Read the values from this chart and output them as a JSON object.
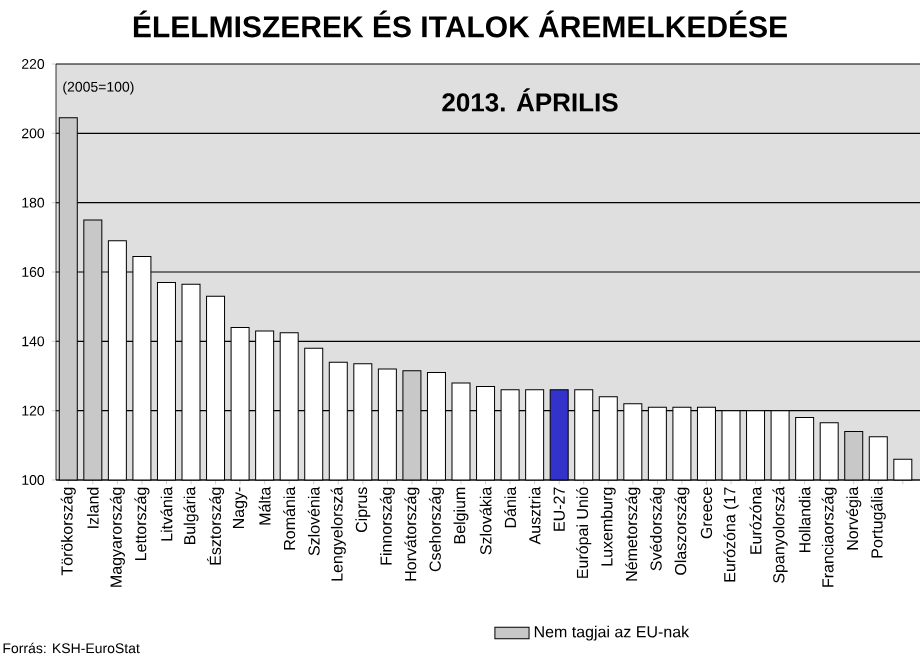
{
  "chart_data": {
    "type": "bar",
    "title": "ÉLELMISZEREK ÉS ITALOK ÁREMELKEDÉSE",
    "subtitle": "2013. ÁPRILIS",
    "categories": [
      "Törökország",
      "Izland",
      "Magyarország",
      "Lettország",
      "Litvánia",
      "Bulgária",
      "Észtország",
      "Nagy-",
      "Málta",
      "Románia",
      "Szlovénia",
      "Lengyelorszá",
      "Ciprus",
      "Finnország",
      "Horvátország",
      "Csehország",
      "Belgium",
      "Szlovákia",
      "Dánia",
      "Ausztria",
      "EU-27",
      "Európai Unió",
      "Luxemburg",
      "Németország",
      "Svédország",
      "Olaszország",
      "Greece",
      "Eurózóna (17",
      "Eurózóna",
      "Spanyolorszá",
      "Hollandia",
      "Franciaország",
      "Norvégia",
      "Portugália",
      null
    ],
    "series": [
      {
        "name": "Nem tagjai az EU-nak",
        "color": "#c8c8c8",
        "values": [
          204.5,
          175,
          null,
          null,
          null,
          null,
          null,
          null,
          null,
          null,
          null,
          null,
          null,
          null,
          131.5,
          null,
          null,
          null,
          null,
          null,
          null,
          null,
          null,
          null,
          null,
          null,
          null,
          null,
          null,
          null,
          null,
          null,
          114,
          null,
          null
        ]
      },
      {
        "color": "#ffffff",
        "values": [
          null,
          null,
          169,
          164.5,
          157,
          156.5,
          153,
          144,
          143,
          142.5,
          138,
          134,
          133.5,
          132,
          null,
          131,
          128,
          127,
          126,
          126,
          null,
          126,
          124,
          122,
          121,
          121,
          121,
          120,
          120,
          120,
          118,
          116.5,
          null,
          112.5,
          106
        ]
      },
      {
        "color": "#3333cc",
        "values": [
          null,
          null,
          null,
          null,
          null,
          null,
          null,
          null,
          null,
          null,
          null,
          null,
          null,
          null,
          null,
          null,
          null,
          null,
          null,
          null,
          126,
          null,
          null,
          null,
          null,
          null,
          null,
          null,
          null,
          null,
          null,
          null,
          null,
          null,
          null
        ]
      }
    ],
    "ylim": [
      100,
      220
    ],
    "yticks": [
      100,
      120,
      140,
      160,
      180,
      200,
      220
    ],
    "grid": "y",
    "legend": "bottom right",
    "annotations": [
      "(2005=100)",
      "Forrás: KSH-EuroStat"
    ]
  }
}
